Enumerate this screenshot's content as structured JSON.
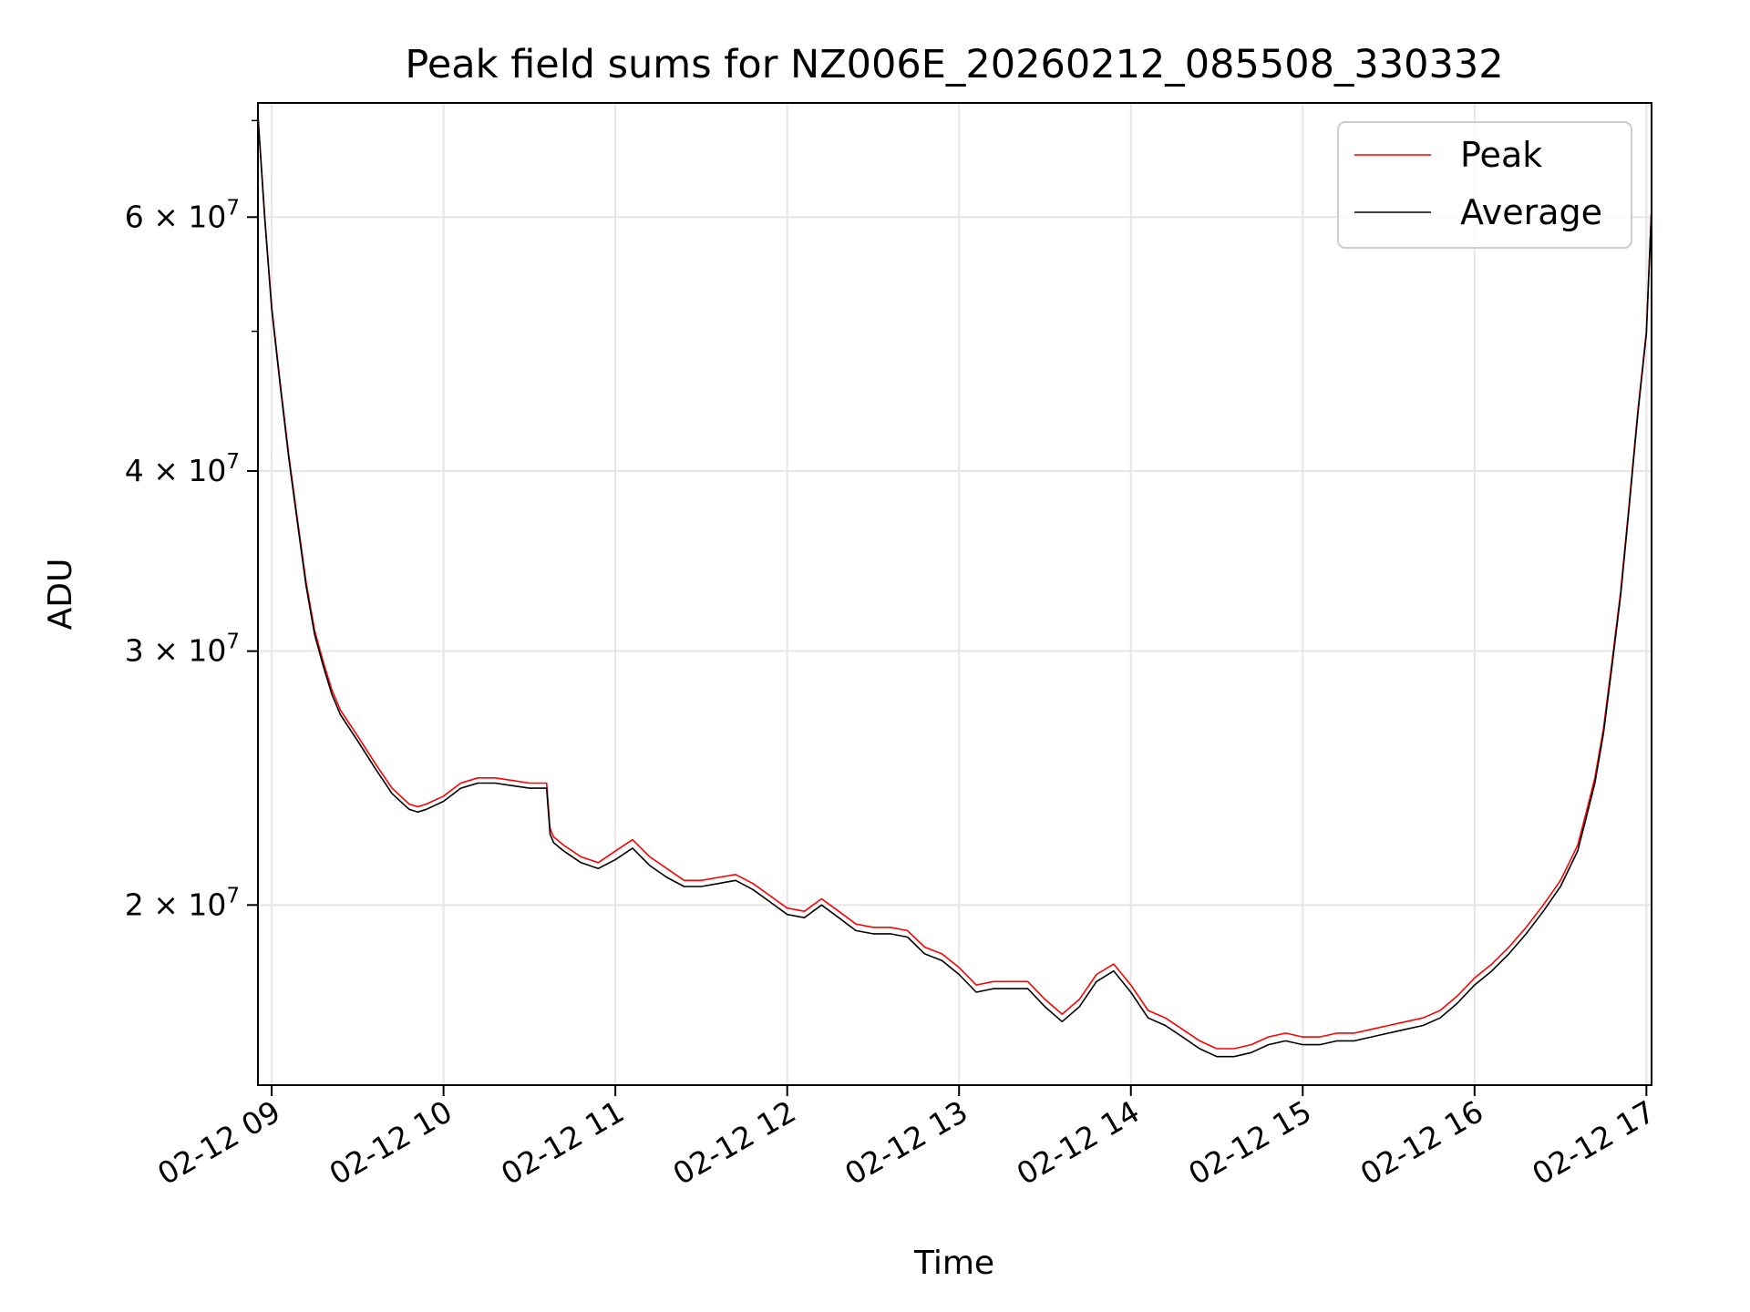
{
  "chart_data": {
    "type": "line",
    "title": "Peak field sums for NZ006E_20260212_085508_330332",
    "xlabel": "Time",
    "ylabel": "ADU",
    "yscale": "log",
    "grid": true,
    "legend_location": "top-right",
    "xlim": [
      8.92,
      17.03
    ],
    "ylim": [
      15000000,
      72000000
    ],
    "x_ticks": [
      {
        "value": 9,
        "label": "02-12 09"
      },
      {
        "value": 10,
        "label": "02-12 10"
      },
      {
        "value": 11,
        "label": "02-12 11"
      },
      {
        "value": 12,
        "label": "02-12 12"
      },
      {
        "value": 13,
        "label": "02-12 13"
      },
      {
        "value": 14,
        "label": "02-12 14"
      },
      {
        "value": 15,
        "label": "02-12 15"
      },
      {
        "value": 16,
        "label": "02-12 16"
      },
      {
        "value": 17,
        "label": "02-12 17"
      }
    ],
    "y_ticks": [
      {
        "value": 20000000,
        "mantissa": "2",
        "base": "10",
        "exp": "7"
      },
      {
        "value": 30000000,
        "mantissa": "3",
        "base": "10",
        "exp": "7"
      },
      {
        "value": 40000000,
        "mantissa": "4",
        "base": "10",
        "exp": "7"
      },
      {
        "value": 60000000,
        "mantissa": "6",
        "base": "10",
        "exp": "7"
      }
    ],
    "y_minor_ticks": [
      50000000,
      70000000
    ],
    "series": [
      {
        "name": "Peak",
        "color": "#ff0000",
        "x": [
          8.92,
          8.96,
          9.0,
          9.05,
          9.1,
          9.15,
          9.2,
          9.25,
          9.3,
          9.35,
          9.4,
          9.5,
          9.6,
          9.7,
          9.8,
          9.85,
          9.9,
          10.0,
          10.1,
          10.2,
          10.3,
          10.4,
          10.5,
          10.6,
          10.62,
          10.64,
          10.7,
          10.8,
          10.9,
          11.0,
          11.1,
          11.2,
          11.3,
          11.4,
          11.5,
          11.6,
          11.7,
          11.8,
          11.9,
          12.0,
          12.1,
          12.2,
          12.3,
          12.4,
          12.5,
          12.6,
          12.7,
          12.8,
          12.9,
          13.0,
          13.1,
          13.2,
          13.3,
          13.4,
          13.5,
          13.6,
          13.7,
          13.8,
          13.9,
          14.0,
          14.1,
          14.2,
          14.3,
          14.4,
          14.5,
          14.6,
          14.7,
          14.8,
          14.9,
          15.0,
          15.1,
          15.2,
          15.3,
          15.4,
          15.5,
          15.6,
          15.7,
          15.8,
          15.9,
          16.0,
          16.1,
          16.2,
          16.3,
          16.4,
          16.5,
          16.6,
          16.65,
          16.7,
          16.75,
          16.8,
          16.85,
          16.9,
          16.95,
          17.0,
          17.03
        ],
        "y": [
          70600000,
          60000000,
          52000000,
          46000000,
          41000000,
          37000000,
          33500000,
          31000000,
          29500000,
          28200000,
          27300000,
          26200000,
          25100000,
          24100000,
          23500000,
          23400000,
          23500000,
          23800000,
          24300000,
          24500000,
          24500000,
          24400000,
          24300000,
          24300000,
          22600000,
          22300000,
          22000000,
          21600000,
          21400000,
          21800000,
          22200000,
          21600000,
          21200000,
          20800000,
          20800000,
          20900000,
          21000000,
          20700000,
          20300000,
          19900000,
          19800000,
          20200000,
          19800000,
          19400000,
          19300000,
          19300000,
          19200000,
          18700000,
          18500000,
          18100000,
          17600000,
          17700000,
          17700000,
          17700000,
          17200000,
          16800000,
          17200000,
          17900000,
          18200000,
          17600000,
          16900000,
          16700000,
          16400000,
          16100000,
          15900000,
          15900000,
          16000000,
          16200000,
          16300000,
          16200000,
          16200000,
          16300000,
          16300000,
          16400000,
          16500000,
          16600000,
          16700000,
          16900000,
          17300000,
          17800000,
          18200000,
          18700000,
          19300000,
          20000000,
          20800000,
          22000000,
          23200000,
          24500000,
          26500000,
          29500000,
          33000000,
          38000000,
          44000000,
          50000000,
          61000000
        ]
      },
      {
        "name": "Average",
        "color": "#000000",
        "x": [
          8.92,
          8.96,
          9.0,
          9.05,
          9.1,
          9.15,
          9.2,
          9.25,
          9.3,
          9.35,
          9.4,
          9.5,
          9.6,
          9.7,
          9.8,
          9.85,
          9.9,
          10.0,
          10.1,
          10.2,
          10.3,
          10.4,
          10.5,
          10.6,
          10.62,
          10.64,
          10.7,
          10.8,
          10.9,
          11.0,
          11.1,
          11.2,
          11.3,
          11.4,
          11.5,
          11.6,
          11.7,
          11.8,
          11.9,
          12.0,
          12.1,
          12.2,
          12.3,
          12.4,
          12.5,
          12.6,
          12.7,
          12.8,
          12.9,
          13.0,
          13.1,
          13.2,
          13.3,
          13.4,
          13.5,
          13.6,
          13.7,
          13.8,
          13.9,
          14.0,
          14.1,
          14.2,
          14.3,
          14.4,
          14.5,
          14.6,
          14.7,
          14.8,
          14.9,
          15.0,
          15.1,
          15.2,
          15.3,
          15.4,
          15.5,
          15.6,
          15.7,
          15.8,
          15.9,
          16.0,
          16.1,
          16.2,
          16.3,
          16.4,
          16.5,
          16.6,
          16.65,
          16.7,
          16.75,
          16.8,
          16.85,
          16.9,
          16.95,
          17.0,
          17.03
        ],
        "y": [
          70500000,
          59800000,
          51800000,
          45800000,
          40800000,
          36800000,
          33300000,
          30800000,
          29300000,
          28000000,
          27100000,
          26000000,
          24900000,
          23900000,
          23300000,
          23200000,
          23300000,
          23600000,
          24100000,
          24300000,
          24300000,
          24200000,
          24100000,
          24100000,
          22400000,
          22100000,
          21800000,
          21400000,
          21200000,
          21500000,
          21900000,
          21300000,
          20900000,
          20600000,
          20600000,
          20700000,
          20800000,
          20500000,
          20100000,
          19700000,
          19600000,
          20000000,
          19600000,
          19200000,
          19100000,
          19100000,
          19000000,
          18500000,
          18300000,
          17900000,
          17400000,
          17500000,
          17500000,
          17500000,
          17000000,
          16600000,
          17000000,
          17700000,
          18000000,
          17400000,
          16700000,
          16500000,
          16200000,
          15900000,
          15700000,
          15700000,
          15800000,
          16000000,
          16100000,
          16000000,
          16000000,
          16100000,
          16100000,
          16200000,
          16300000,
          16400000,
          16500000,
          16700000,
          17100000,
          17600000,
          18000000,
          18500000,
          19100000,
          19800000,
          20600000,
          21800000,
          23000000,
          24300000,
          26300000,
          29300000,
          32800000,
          37800000,
          43800000,
          49800000,
          60800000
        ]
      }
    ]
  }
}
